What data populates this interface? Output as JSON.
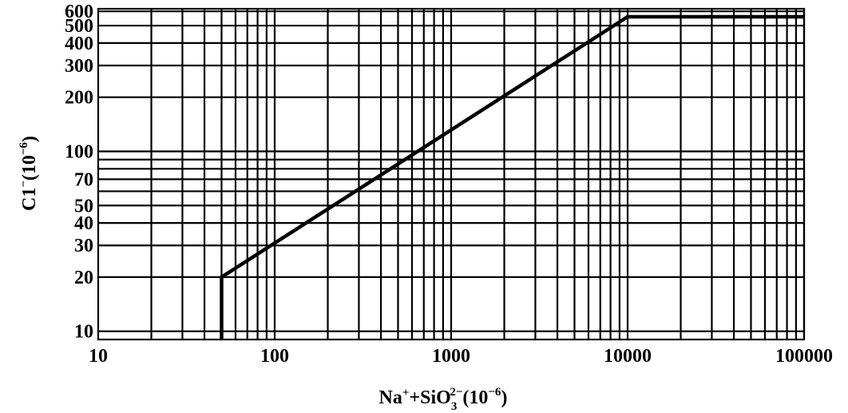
{
  "chart_data": {
    "type": "line",
    "title": "",
    "x_scale": "log",
    "y_scale": "log",
    "xlim": [
      10,
      100000
    ],
    "ylim": [
      9,
      620
    ],
    "x_ticks": [
      "10",
      "100",
      "1000",
      "10000",
      "100000"
    ],
    "y_ticks": [
      "10",
      "20",
      "30",
      "40",
      "50",
      "70",
      "100",
      "200",
      "300",
      "400",
      "500",
      "600"
    ],
    "x_grid": [
      20,
      30,
      40,
      50,
      60,
      70,
      80,
      90,
      100,
      200,
      300,
      400,
      500,
      600,
      700,
      800,
      900,
      1000,
      2000,
      3000,
      4000,
      5000,
      6000,
      7000,
      8000,
      9000,
      10000,
      20000,
      30000,
      40000,
      50000,
      60000,
      70000,
      80000,
      90000,
      100000
    ],
    "y_grid": [
      10,
      20,
      30,
      40,
      50,
      60,
      70,
      80,
      90,
      100,
      200,
      300,
      400,
      500,
      600
    ],
    "grid": true,
    "series": [
      {
        "x": [
          50,
          50,
          10000,
          100000
        ],
        "y": [
          9,
          20,
          560,
          560
        ]
      }
    ],
    "xlabel": {
      "main": "Na",
      "sup1": "+",
      "plus": "+SiO",
      "sub": "3",
      "sup2": "2−",
      "unit": "(10",
      "unit_sup": "−6",
      "close": ")"
    },
    "ylabel": {
      "main": "C1",
      "sup1": "−",
      "unit": "(10",
      "unit_sup": "−6",
      "close": ")"
    }
  }
}
